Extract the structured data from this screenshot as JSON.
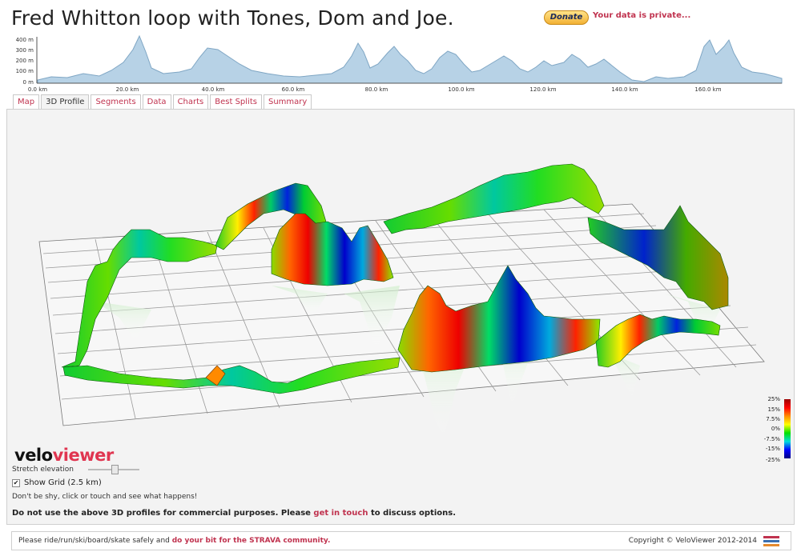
{
  "page": {
    "title": "Fred Whitton loop with Tones, Dom and Joe.",
    "donate_label": "Donate",
    "privacy_note": "Your data is private...",
    "colors": {
      "accent": "#c0334f",
      "profile_fill": "#b7d2e6",
      "profile_line": "#7fa6c4"
    }
  },
  "mini_profile": {
    "y_ticks": [
      "400 m",
      "300 m",
      "200 m",
      "100 m",
      "0 m"
    ],
    "x_ticks": [
      "0.0 km",
      "20.0 km",
      "40.0 km",
      "60.0 km",
      "80.0 km",
      "100.0 km",
      "120.0 km",
      "140.0 km",
      "160.0 km"
    ]
  },
  "tabs": [
    {
      "label": "Map",
      "active": false
    },
    {
      "label": "3D Profile",
      "active": true
    },
    {
      "label": "Segments",
      "active": false
    },
    {
      "label": "Data",
      "active": false
    },
    {
      "label": "Charts",
      "active": false
    },
    {
      "label": "Best Splits",
      "active": false
    },
    {
      "label": "Summary",
      "active": false
    }
  ],
  "legend": {
    "ticks": [
      "25%",
      "15%",
      "7.5%",
      "0%",
      "-7.5%",
      "-15%",
      "-25%"
    ]
  },
  "logo": {
    "part1": "velo",
    "part2": "viewer"
  },
  "controls": {
    "stretch_label": "Stretch elevation",
    "grid_label": "Show Grid (2.5 km)",
    "grid_checked_mark": "✔",
    "hint": "Don't be shy, click or touch and see what happens!",
    "notice_prefix": "Do not use the above 3D profiles for commercial purposes. Please ",
    "notice_link": "get in touch",
    "notice_suffix": " to discuss options."
  },
  "footer": {
    "prefix": "Please ride/run/ski/board/skate safely and ",
    "link": "do your bit for the STRAVA community.",
    "copyright": "Copyright © VeloViewer 2012-2014"
  }
}
